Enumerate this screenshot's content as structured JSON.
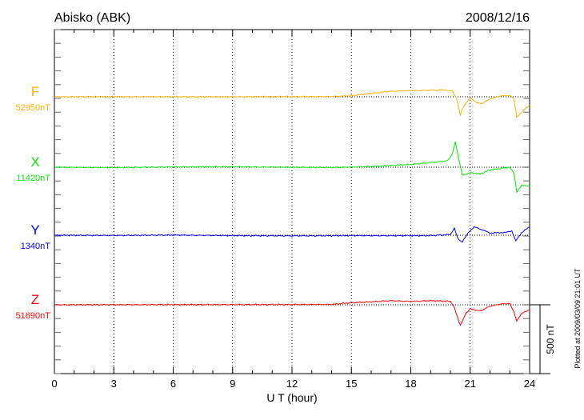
{
  "chart_data": {
    "type": "line",
    "title": "Abisko (ABK)",
    "date": "2008/12/16",
    "xlabel": "U T (hour)",
    "xlim": [
      0,
      24
    ],
    "xticks": [
      "0",
      "3",
      "6",
      "9",
      "12",
      "15",
      "18",
      "21",
      "24"
    ],
    "scale_label": "500 nT",
    "scale_nT": 500,
    "plotted_note": "Plotted at 2009/03/09 21:01 UT",
    "series": [
      {
        "name": "F",
        "baseline_label": "52950nT",
        "color": "#ffb000",
        "points": [
          [
            0,
            0
          ],
          [
            4,
            1
          ],
          [
            8,
            0
          ],
          [
            12,
            1
          ],
          [
            14,
            2
          ],
          [
            15,
            8
          ],
          [
            16,
            25
          ],
          [
            17,
            40
          ],
          [
            18,
            45
          ],
          [
            19,
            48
          ],
          [
            19.8,
            50
          ],
          [
            20.1,
            40
          ],
          [
            20.3,
            -10
          ],
          [
            20.5,
            -128
          ],
          [
            20.7,
            -60
          ],
          [
            21,
            -10
          ],
          [
            21.3,
            -40
          ],
          [
            21.6,
            -50
          ],
          [
            22,
            -15
          ],
          [
            22.5,
            5
          ],
          [
            23,
            10
          ],
          [
            23.2,
            -10
          ],
          [
            23.35,
            -150
          ],
          [
            23.6,
            -110
          ],
          [
            24,
            -60
          ]
        ]
      },
      {
        "name": "X",
        "baseline_label": "11420nT",
        "color": "#00ee00",
        "points": [
          [
            0,
            0
          ],
          [
            3,
            -3
          ],
          [
            6,
            2
          ],
          [
            9,
            3
          ],
          [
            12,
            0
          ],
          [
            14,
            -2
          ],
          [
            16,
            5
          ],
          [
            18,
            20
          ],
          [
            19.5,
            40
          ],
          [
            19.9,
            50
          ],
          [
            20.1,
            100
          ],
          [
            20.25,
            180
          ],
          [
            20.45,
            40
          ],
          [
            20.6,
            -60
          ],
          [
            21,
            -40
          ],
          [
            21.5,
            -50
          ],
          [
            22,
            -20
          ],
          [
            23,
            0
          ],
          [
            23.2,
            -40
          ],
          [
            23.35,
            -180
          ],
          [
            23.6,
            -130
          ],
          [
            24,
            -140
          ]
        ]
      },
      {
        "name": "Y",
        "baseline_label": "1340nT",
        "color": "#0000ff",
        "points": [
          [
            0,
            0
          ],
          [
            3,
            -2
          ],
          [
            6,
            1
          ],
          [
            9,
            -3
          ],
          [
            12,
            -5
          ],
          [
            15,
            -3
          ],
          [
            17,
            -4
          ],
          [
            19,
            -3
          ],
          [
            20,
            5
          ],
          [
            20.2,
            50
          ],
          [
            20.4,
            -30
          ],
          [
            20.6,
            -50
          ],
          [
            20.9,
            20
          ],
          [
            21.2,
            60
          ],
          [
            21.6,
            40
          ],
          [
            22,
            15
          ],
          [
            22.8,
            20
          ],
          [
            23.1,
            30
          ],
          [
            23.3,
            -40
          ],
          [
            23.6,
            20
          ],
          [
            24,
            60
          ]
        ]
      },
      {
        "name": "Z",
        "baseline_label": "51690nT",
        "color": "#ff0000",
        "points": [
          [
            0,
            0
          ],
          [
            6,
            1
          ],
          [
            12,
            2
          ],
          [
            14,
            3
          ],
          [
            15,
            15
          ],
          [
            16,
            22
          ],
          [
            17,
            30
          ],
          [
            18,
            25
          ],
          [
            19,
            30
          ],
          [
            20,
            25
          ],
          [
            20.2,
            -20
          ],
          [
            20.5,
            -150
          ],
          [
            20.8,
            -60
          ],
          [
            21,
            -30
          ],
          [
            21.5,
            -45
          ],
          [
            22,
            -10
          ],
          [
            22.5,
            5
          ],
          [
            23,
            10
          ],
          [
            23.2,
            -50
          ],
          [
            23.35,
            -120
          ],
          [
            23.6,
            -60
          ],
          [
            24,
            -40
          ]
        ]
      }
    ]
  }
}
